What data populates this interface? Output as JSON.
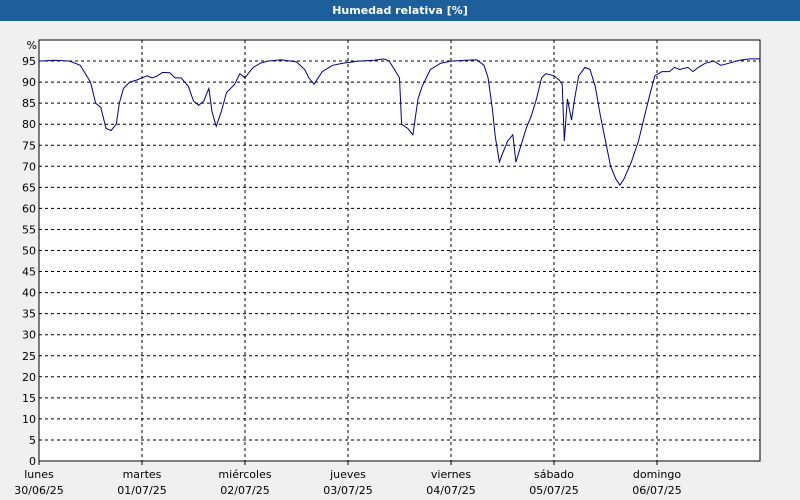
{
  "title": "Humedad relativa [%]",
  "chart_data": {
    "type": "line",
    "title": "Humedad relativa [%]",
    "ylabel": "%",
    "ylim": [
      0,
      100
    ],
    "yticks": [
      0,
      5,
      10,
      15,
      20,
      25,
      30,
      35,
      40,
      45,
      50,
      55,
      60,
      65,
      70,
      75,
      80,
      85,
      90,
      95
    ],
    "xlim": [
      0,
      7
    ],
    "day_labels": [
      {
        "day": "lunes",
        "date": "30/06/25"
      },
      {
        "day": "martes",
        "date": "01/07/25"
      },
      {
        "day": "miércoles",
        "date": "02/07/25"
      },
      {
        "day": "jueves",
        "date": "03/07/25"
      },
      {
        "day": "viernes",
        "date": "04/07/25"
      },
      {
        "day": "sábado",
        "date": "05/07/25"
      },
      {
        "day": "domingo",
        "date": "06/07/25"
      }
    ],
    "grid": true,
    "line_color": "#00008b",
    "series": [
      {
        "values": [
          [
            0.0,
            95.0
          ],
          [
            0.15,
            95.2
          ],
          [
            0.3,
            95.0
          ],
          [
            0.4,
            94.0
          ],
          [
            0.5,
            90.0
          ],
          [
            0.55,
            85.0
          ],
          [
            0.6,
            84.0
          ],
          [
            0.65,
            79.0
          ],
          [
            0.7,
            78.5
          ],
          [
            0.75,
            80.0
          ],
          [
            0.78,
            85.0
          ],
          [
            0.82,
            88.5
          ],
          [
            0.88,
            90.0
          ],
          [
            0.95,
            90.5
          ],
          [
            1.05,
            91.5
          ],
          [
            1.1,
            91.0
          ],
          [
            1.15,
            91.5
          ],
          [
            1.2,
            92.3
          ],
          [
            1.27,
            92.2
          ],
          [
            1.32,
            91.0
          ],
          [
            1.38,
            91.0
          ],
          [
            1.45,
            89.0
          ],
          [
            1.5,
            85.5
          ],
          [
            1.55,
            84.5
          ],
          [
            1.6,
            85.5
          ],
          [
            1.65,
            88.5
          ],
          [
            1.68,
            83.0
          ],
          [
            1.72,
            79.5
          ],
          [
            1.77,
            83.0
          ],
          [
            1.82,
            87.5
          ],
          [
            1.9,
            89.5
          ],
          [
            1.95,
            92.0
          ],
          [
            2.0,
            91.0
          ],
          [
            2.03,
            92.0
          ],
          [
            2.08,
            93.5
          ],
          [
            2.15,
            94.5
          ],
          [
            2.22,
            95.0
          ],
          [
            2.35,
            95.3
          ],
          [
            2.5,
            94.8
          ],
          [
            2.58,
            93.0
          ],
          [
            2.62,
            91.0
          ],
          [
            2.67,
            89.5
          ],
          [
            2.75,
            92.5
          ],
          [
            2.85,
            94.0
          ],
          [
            2.95,
            94.5
          ],
          [
            3.1,
            95.0
          ],
          [
            3.25,
            95.2
          ],
          [
            3.35,
            95.5
          ],
          [
            3.4,
            95.0
          ],
          [
            3.45,
            93.0
          ],
          [
            3.5,
            91.0
          ],
          [
            3.52,
            80.0
          ],
          [
            3.58,
            79.0
          ],
          [
            3.63,
            77.5
          ],
          [
            3.68,
            86.0
          ],
          [
            3.72,
            89.0
          ],
          [
            3.8,
            93.0
          ],
          [
            3.9,
            94.5
          ],
          [
            4.0,
            95.0
          ],
          [
            4.15,
            95.2
          ],
          [
            4.25,
            95.3
          ],
          [
            4.32,
            94.0
          ],
          [
            4.36,
            91.0
          ],
          [
            4.4,
            84.0
          ],
          [
            4.43,
            77.0
          ],
          [
            4.47,
            71.0
          ],
          [
            4.5,
            73.0
          ],
          [
            4.55,
            76.0
          ],
          [
            4.6,
            77.5
          ],
          [
            4.63,
            71.0
          ],
          [
            4.68,
            75.0
          ],
          [
            4.73,
            79.0
          ],
          [
            4.78,
            82.0
          ],
          [
            4.83,
            86.0
          ],
          [
            4.88,
            91.0
          ],
          [
            4.92,
            92.0
          ],
          [
            5.0,
            91.5
          ],
          [
            5.05,
            90.5
          ],
          [
            5.08,
            89.5
          ],
          [
            5.1,
            76.0
          ],
          [
            5.13,
            86.0
          ],
          [
            5.17,
            81.0
          ],
          [
            5.2,
            86.0
          ],
          [
            5.24,
            91.5
          ],
          [
            5.3,
            93.5
          ],
          [
            5.35,
            93.0
          ],
          [
            5.4,
            89.0
          ],
          [
            5.45,
            82.0
          ],
          [
            5.5,
            76.0
          ],
          [
            5.55,
            70.0
          ],
          [
            5.6,
            67.0
          ],
          [
            5.64,
            65.5
          ],
          [
            5.68,
            67.0
          ],
          [
            5.75,
            71.0
          ],
          [
            5.82,
            76.0
          ],
          [
            5.88,
            82.0
          ],
          [
            5.93,
            87.0
          ],
          [
            5.98,
            91.5
          ],
          [
            6.05,
            92.5
          ],
          [
            6.12,
            92.5
          ],
          [
            6.17,
            93.5
          ],
          [
            6.22,
            93.0
          ],
          [
            6.3,
            93.5
          ],
          [
            6.35,
            92.5
          ],
          [
            6.4,
            93.5
          ],
          [
            6.47,
            94.5
          ],
          [
            6.55,
            95.0
          ],
          [
            6.62,
            94.0
          ],
          [
            6.7,
            94.5
          ],
          [
            6.8,
            95.2
          ],
          [
            6.9,
            95.5
          ],
          [
            7.0,
            95.5
          ]
        ]
      }
    ]
  }
}
